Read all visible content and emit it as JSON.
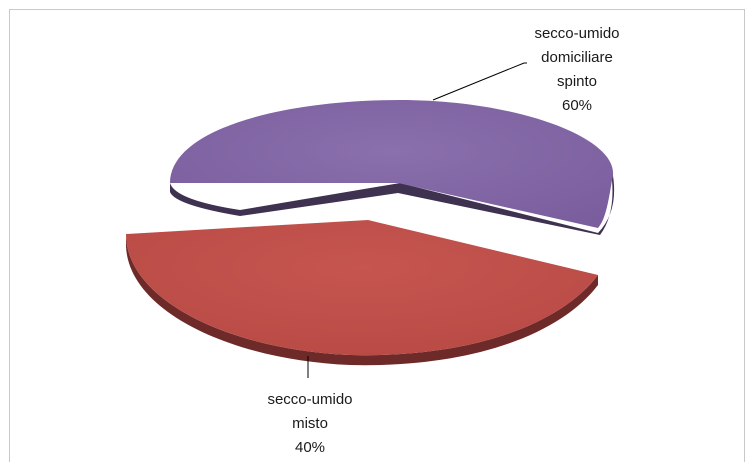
{
  "chart_data": {
    "type": "pie",
    "style": "3d-exploded",
    "title": "",
    "slices": [
      {
        "label_lines": [
          "secco-umido",
          "domiciliare",
          "spinto"
        ],
        "value": 60,
        "percent_label": "60%",
        "color": "#8064a2",
        "side_color": "#3f3150"
      },
      {
        "label_lines": [
          "secco-umido",
          "misto"
        ],
        "value": 40,
        "percent_label": "40%",
        "color": "#c0504d",
        "side_color": "#6e2a28"
      }
    ]
  }
}
